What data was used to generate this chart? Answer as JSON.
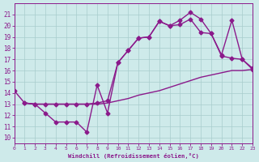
{
  "xlabel": "Windchill (Refroidissement éolien,°C)",
  "line1_x": [
    0,
    1,
    2,
    3,
    4,
    5,
    6,
    7,
    8,
    9,
    10,
    11,
    12,
    13,
    14,
    15,
    16,
    17,
    18,
    19,
    20,
    21,
    22,
    23
  ],
  "line1_y": [
    14.2,
    13.1,
    13.0,
    13.0,
    13.0,
    13.0,
    13.0,
    13.0,
    13.0,
    13.1,
    13.3,
    13.5,
    13.8,
    14.0,
    14.2,
    14.5,
    14.8,
    15.1,
    15.4,
    15.6,
    15.8,
    16.0,
    16.0,
    16.1
  ],
  "line2_x": [
    1,
    2,
    3,
    4,
    5,
    6,
    7,
    8,
    9,
    10,
    11,
    12,
    13,
    14,
    15,
    16,
    17,
    18,
    19,
    20,
    21,
    22,
    23
  ],
  "line2_y": [
    13.1,
    13.0,
    13.0,
    13.0,
    13.0,
    13.0,
    13.0,
    13.1,
    13.3,
    16.7,
    17.8,
    18.9,
    19.0,
    20.4,
    20.0,
    20.1,
    20.6,
    19.4,
    19.3,
    17.3,
    17.1,
    17.0,
    16.2
  ],
  "line3_x": [
    1,
    2,
    3,
    4,
    5,
    6,
    7,
    8,
    9,
    10,
    11,
    12,
    13,
    14,
    15,
    16,
    17,
    18,
    19,
    20,
    21,
    22,
    23
  ],
  "line3_y": [
    13.1,
    13.0,
    12.2,
    11.4,
    11.4,
    11.4,
    10.5,
    14.7,
    12.2,
    16.7,
    17.8,
    18.9,
    19.0,
    20.4,
    20.0,
    20.5,
    21.2,
    20.6,
    19.3,
    17.4,
    20.5,
    17.0,
    16.1
  ],
  "xlim": [
    0,
    23
  ],
  "ylim": [
    9.5,
    22
  ],
  "yticks": [
    10,
    11,
    12,
    13,
    14,
    15,
    16,
    17,
    18,
    19,
    20,
    21
  ],
  "xticks": [
    0,
    1,
    2,
    3,
    4,
    5,
    6,
    7,
    8,
    9,
    10,
    11,
    12,
    13,
    14,
    15,
    16,
    17,
    18,
    19,
    20,
    21,
    22,
    23
  ],
  "bg_color": "#ceeaea",
  "grid_color": "#a8cccc",
  "line_color": "#8b1a8b",
  "spine_color": "#8b1a8b"
}
